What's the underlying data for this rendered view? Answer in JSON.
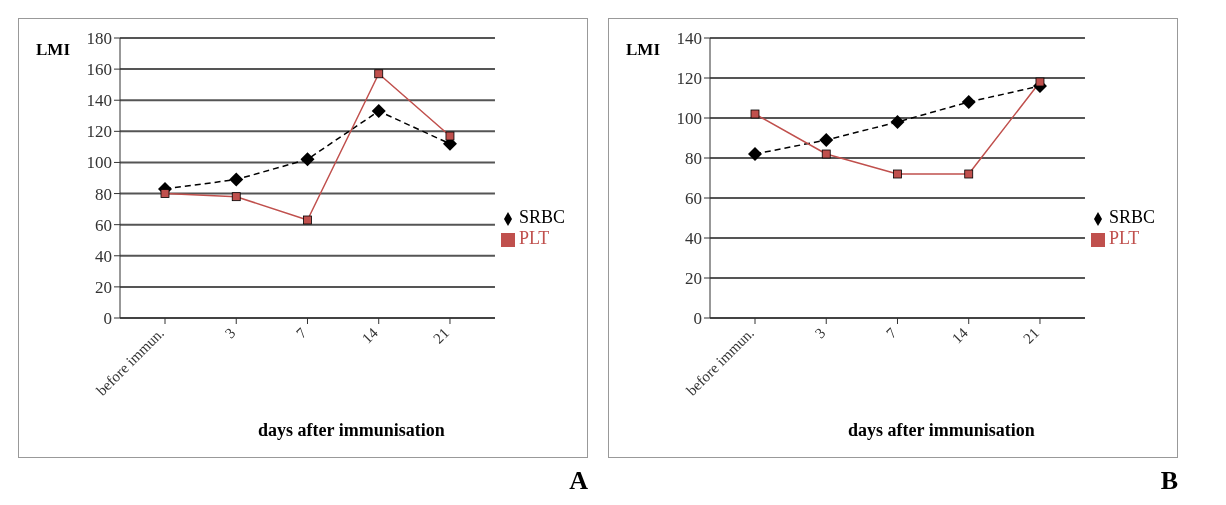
{
  "chart_data": [
    {
      "type": "line",
      "ylabel": "LMI",
      "xlabel": "days  after immunisation",
      "categories": [
        "before immun.",
        "3",
        "7",
        "14",
        "21"
      ],
      "series": [
        {
          "name": "SRBC",
          "color": "#000000",
          "values": [
            83,
            89,
            102,
            133,
            112
          ],
          "marker": "diamond",
          "line_style": "dashed"
        },
        {
          "name": "PLT",
          "color": "#c0504d",
          "values": [
            80,
            78,
            63,
            157,
            117
          ],
          "marker": "square",
          "line_style": "solid"
        }
      ],
      "ylim": [
        0,
        180
      ],
      "yticks": [
        0,
        20,
        40,
        60,
        80,
        100,
        120,
        140,
        160,
        180
      ],
      "grid": "y",
      "legend": "right",
      "annotations": [
        "A"
      ]
    },
    {
      "type": "line",
      "ylabel": "LMI",
      "xlabel": "days after immunisation",
      "categories": [
        "before immun.",
        "3",
        "7",
        "14",
        "21"
      ],
      "series": [
        {
          "name": "SRBC",
          "color": "#000000",
          "values": [
            82,
            89,
            98,
            108,
            116
          ],
          "marker": "diamond",
          "line_style": "dashed"
        },
        {
          "name": "PLT",
          "color": "#c0504d",
          "values": [
            102,
            82,
            72,
            72,
            118
          ],
          "marker": "square",
          "line_style": "solid"
        }
      ],
      "ylim": [
        0,
        140
      ],
      "yticks": [
        0,
        20,
        40,
        60,
        80,
        100,
        120,
        140
      ],
      "grid": "y",
      "legend": "right",
      "annotations": [
        "B"
      ]
    }
  ]
}
